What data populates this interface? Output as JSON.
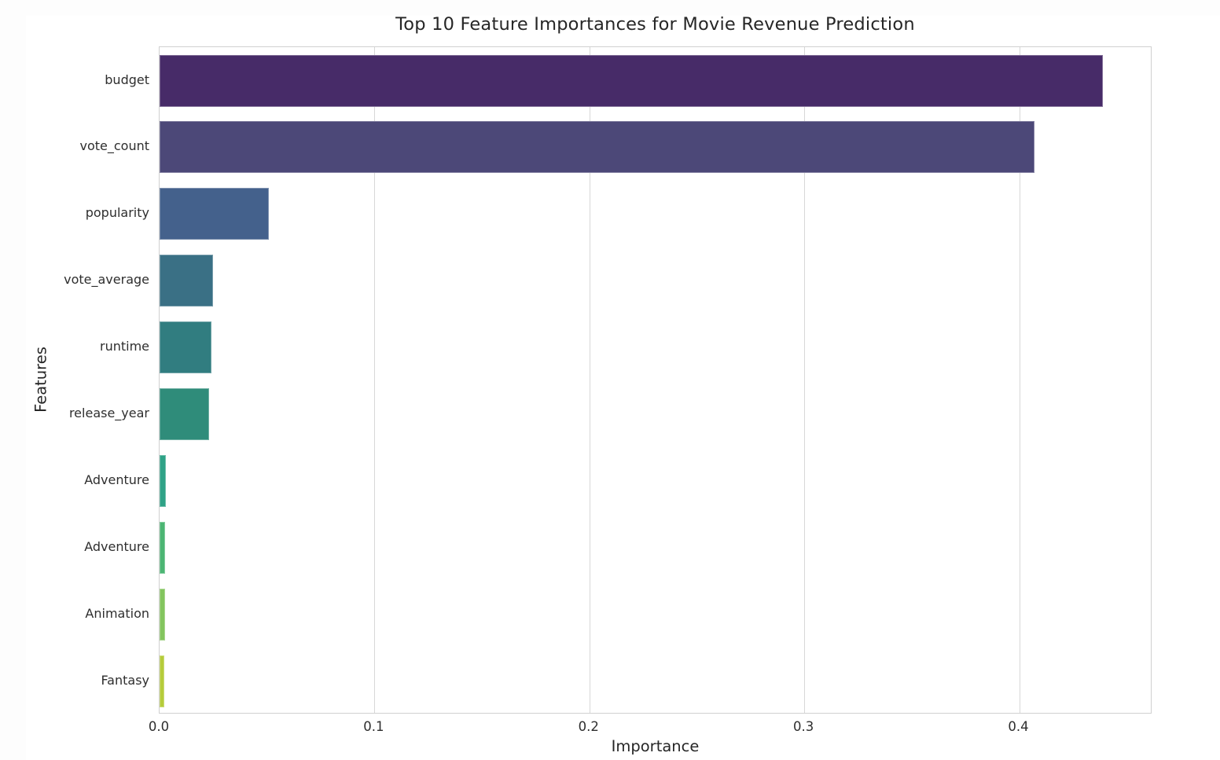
{
  "figure": {
    "outer_background": "#fdfdfd",
    "figure_background": "#ffffff",
    "plot_background": "#ffffff",
    "spine_color": "#d0d0d0",
    "grid_color": "#d7d7d7",
    "text_color": "#262626"
  },
  "chart_data": {
    "type": "bar",
    "orientation": "horizontal",
    "title": "Top 10 Feature Importances for Movie Revenue Prediction",
    "xlabel": "Importance",
    "ylabel": "Features",
    "categories": [
      "budget",
      "vote_count",
      "popularity",
      "vote_average",
      "runtime",
      "release_year",
      "Adventure",
      "Adventure",
      "Animation",
      "Fantasy"
    ],
    "values": [
      0.439,
      0.407,
      0.051,
      0.025,
      0.024,
      0.023,
      0.003,
      0.0027,
      0.0026,
      0.0022
    ],
    "bar_colors": [
      "#472B68",
      "#4C4878",
      "#44618C",
      "#3A7085",
      "#317D80",
      "#2F8C7A",
      "#2FA287",
      "#4CB573",
      "#83C55E",
      "#B5CC3B"
    ],
    "palette": "viridis",
    "x_ticks": [
      0.0,
      0.1,
      0.2,
      0.3,
      0.4
    ],
    "x_tick_labels": [
      "0.0",
      "0.1",
      "0.2",
      "0.3",
      "0.4"
    ],
    "xlim": [
      0,
      0.462
    ],
    "grid": "vertical-gridlines",
    "legend": "none"
  }
}
